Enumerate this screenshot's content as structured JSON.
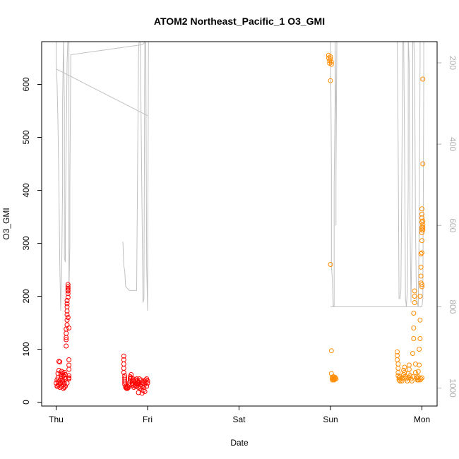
{
  "chart_data": {
    "type": "scatter",
    "title": "ATOM2 Northeast_Pacific_1 O3_GMI",
    "xlabel": "Date",
    "ylabel": "O3_GMI",
    "x_axis": {
      "type": "time",
      "ticks": [
        "Thu",
        "Fri",
        "Sat",
        "Sun",
        "Mon"
      ],
      "range_days": [
        -0.08,
        4.16
      ]
    },
    "ylim": [
      0,
      680
    ],
    "y_ticks": [
      0,
      100,
      200,
      300,
      400,
      500,
      600
    ],
    "secondary_axis": {
      "label": "",
      "reversed": true,
      "ticks": [
        200,
        400,
        600,
        800,
        1000
      ],
      "range": [
        135,
        1035
      ],
      "color": "#b0b0b0"
    },
    "grid": false,
    "series": [
      {
        "color": "#ff0000",
        "marker": "open-circle",
        "points": [
          [
            0.0,
            36
          ],
          [
            0.01,
            42
          ],
          [
            0.01,
            30
          ],
          [
            0.02,
            38
          ],
          [
            0.02,
            46
          ],
          [
            0.02,
            54
          ],
          [
            0.03,
            77
          ],
          [
            0.03,
            33
          ],
          [
            0.03,
            60
          ],
          [
            0.04,
            28
          ],
          [
            0.04,
            40
          ],
          [
            0.05,
            52
          ],
          [
            0.05,
            44
          ],
          [
            0.05,
            36
          ],
          [
            0.06,
            48
          ],
          [
            0.06,
            30
          ],
          [
            0.07,
            55
          ],
          [
            0.07,
            42
          ],
          [
            0.07,
            38
          ],
          [
            0.08,
            26
          ],
          [
            0.08,
            33
          ],
          [
            0.08,
            50
          ],
          [
            0.09,
            46
          ],
          [
            0.09,
            36
          ],
          [
            0.09,
            56
          ],
          [
            0.1,
            30
          ],
          [
            0.1,
            44
          ],
          [
            0.1,
            52
          ],
          [
            0.11,
            106
          ],
          [
            0.11,
            118
          ],
          [
            0.11,
            122
          ],
          [
            0.11,
            130
          ],
          [
            0.11,
            138
          ],
          [
            0.12,
            146
          ],
          [
            0.12,
            155
          ],
          [
            0.12,
            165
          ],
          [
            0.12,
            172
          ],
          [
            0.12,
            180
          ],
          [
            0.12,
            186
          ],
          [
            0.12,
            192
          ],
          [
            0.13,
            198
          ],
          [
            0.13,
            205
          ],
          [
            0.13,
            210
          ],
          [
            0.13,
            215
          ],
          [
            0.13,
            218
          ],
          [
            0.13,
            222
          ],
          [
            0.13,
            212
          ],
          [
            0.13,
            160
          ],
          [
            0.14,
            140
          ],
          [
            0.14,
            80
          ],
          [
            0.14,
            70
          ],
          [
            0.14,
            62
          ],
          [
            0.14,
            50
          ],
          [
            0.14,
            46
          ],
          [
            0.14,
            44
          ],
          [
            0.04,
            76
          ],
          [
            0.06,
            58
          ],
          [
            0.12,
            36
          ],
          [
            0.02,
            30
          ],
          [
            0.09,
            28
          ],
          [
            0.74,
            87
          ],
          [
            0.74,
            80
          ],
          [
            0.74,
            72
          ],
          [
            0.74,
            64
          ],
          [
            0.74,
            56
          ],
          [
            0.75,
            50
          ],
          [
            0.75,
            46
          ],
          [
            0.75,
            42
          ],
          [
            0.75,
            38
          ],
          [
            0.75,
            34
          ],
          [
            0.76,
            30
          ],
          [
            0.76,
            28
          ],
          [
            0.77,
            27
          ],
          [
            0.77,
            26
          ],
          [
            0.78,
            30
          ],
          [
            0.78,
            26
          ],
          [
            0.79,
            28
          ],
          [
            0.8,
            32
          ],
          [
            0.8,
            36
          ],
          [
            0.81,
            40
          ],
          [
            0.81,
            44
          ],
          [
            0.81,
            48
          ],
          [
            0.82,
            52
          ],
          [
            0.82,
            46
          ],
          [
            0.83,
            40
          ],
          [
            0.83,
            36
          ],
          [
            0.84,
            32
          ],
          [
            0.84,
            44
          ],
          [
            0.85,
            40
          ],
          [
            0.85,
            28
          ],
          [
            0.86,
            32
          ],
          [
            0.86,
            38
          ],
          [
            0.87,
            42
          ],
          [
            0.87,
            30
          ],
          [
            0.88,
            36
          ],
          [
            0.88,
            44
          ],
          [
            0.89,
            40
          ],
          [
            0.89,
            34
          ],
          [
            0.9,
            28
          ],
          [
            0.9,
            38
          ],
          [
            0.91,
            44
          ],
          [
            0.91,
            36
          ],
          [
            0.92,
            30
          ],
          [
            0.92,
            26
          ],
          [
            0.93,
            34
          ],
          [
            0.93,
            42
          ],
          [
            0.94,
            38
          ],
          [
            0.94,
            30
          ],
          [
            0.95,
            22
          ],
          [
            0.95,
            36
          ],
          [
            0.96,
            40
          ],
          [
            0.96,
            28
          ],
          [
            0.97,
            20
          ],
          [
            0.97,
            34
          ],
          [
            0.98,
            42
          ],
          [
            0.98,
            38
          ],
          [
            0.99,
            30
          ],
          [
            0.99,
            44
          ],
          [
            1.0,
            36
          ],
          [
            1.0,
            40
          ],
          [
            0.9,
            18
          ],
          [
            0.94,
            17
          ]
        ]
      },
      {
        "color": "#ff8c00",
        "marker": "open-circle",
        "points": [
          [
            2.98,
            655
          ],
          [
            2.98,
            650
          ],
          [
            2.99,
            645
          ],
          [
            2.99,
            640
          ],
          [
            3.0,
            652
          ],
          [
            3.0,
            648
          ],
          [
            3.01,
            642
          ],
          [
            3.01,
            638
          ],
          [
            3.0,
            607
          ],
          [
            3.0,
            260
          ],
          [
            3.01,
            97
          ],
          [
            3.01,
            54
          ],
          [
            3.02,
            47
          ],
          [
            3.02,
            45
          ],
          [
            3.03,
            43
          ],
          [
            3.03,
            46
          ],
          [
            3.04,
            44
          ],
          [
            3.04,
            42
          ],
          [
            3.05,
            45
          ],
          [
            3.05,
            47
          ],
          [
            3.06,
            44
          ],
          [
            3.02,
            42
          ],
          [
            3.03,
            48
          ],
          [
            3.04,
            46
          ],
          [
            3.73,
            95
          ],
          [
            3.73,
            88
          ],
          [
            3.73,
            80
          ],
          [
            3.74,
            72
          ],
          [
            3.74,
            64
          ],
          [
            3.74,
            56
          ],
          [
            3.74,
            50
          ],
          [
            3.75,
            46
          ],
          [
            3.75,
            42
          ],
          [
            3.76,
            48
          ],
          [
            3.77,
            44
          ],
          [
            3.78,
            40
          ],
          [
            3.79,
            46
          ],
          [
            3.8,
            52
          ],
          [
            3.8,
            60
          ],
          [
            3.81,
            66
          ],
          [
            3.81,
            56
          ],
          [
            3.82,
            48
          ],
          [
            3.83,
            44
          ],
          [
            3.84,
            40
          ],
          [
            3.85,
            46
          ],
          [
            3.85,
            54
          ],
          [
            3.86,
            62
          ],
          [
            3.86,
            70
          ],
          [
            3.87,
            50
          ],
          [
            3.88,
            44
          ],
          [
            3.89,
            40
          ],
          [
            3.9,
            48
          ],
          [
            3.9,
            92
          ],
          [
            3.91,
            120
          ],
          [
            3.91,
            140
          ],
          [
            3.91,
            168
          ],
          [
            3.92,
            188
          ],
          [
            3.92,
            200
          ],
          [
            3.92,
            210
          ],
          [
            3.93,
            72
          ],
          [
            3.93,
            56
          ],
          [
            3.94,
            46
          ],
          [
            3.95,
            42
          ],
          [
            3.96,
            48
          ],
          [
            3.96,
            58
          ],
          [
            3.97,
            70
          ],
          [
            3.97,
            100
          ],
          [
            3.98,
            120
          ],
          [
            3.98,
            155
          ],
          [
            3.98,
            200
          ],
          [
            3.99,
            225
          ],
          [
            3.99,
            238
          ],
          [
            3.99,
            255
          ],
          [
            3.99,
            280
          ],
          [
            4.0,
            282
          ],
          [
            4.0,
            305
          ],
          [
            4.0,
            320
          ],
          [
            4.0,
            325
          ],
          [
            4.0,
            330
          ],
          [
            4.0,
            340
          ],
          [
            4.0,
            348
          ],
          [
            4.0,
            355
          ],
          [
            4.0,
            365
          ],
          [
            4.01,
            330
          ],
          [
            4.01,
            325
          ],
          [
            4.01,
            335
          ],
          [
            4.01,
            342
          ],
          [
            4.01,
            450
          ],
          [
            4.01,
            610
          ],
          [
            4.0,
            222
          ],
          [
            4.0,
            218
          ],
          [
            3.96,
            42
          ],
          [
            3.98,
            42
          ],
          [
            3.99,
            44
          ],
          [
            4.0,
            46
          ],
          [
            3.76,
            40
          ],
          [
            3.95,
            46
          ]
        ]
      }
    ],
    "pressure_line": {
      "color": "#c0c0c0",
      "points": [
        [
          0.0,
          135
        ],
        [
          0.0,
          200
        ],
        [
          0.01,
          250
        ],
        [
          0.02,
          350
        ],
        [
          0.03,
          500
        ],
        [
          0.04,
          700
        ],
        [
          0.05,
          810
        ],
        [
          0.06,
          720
        ],
        [
          0.07,
          500
        ],
        [
          0.07,
          300
        ],
        [
          0.08,
          150
        ],
        [
          0.08,
          135
        ],
        [
          0.09,
          300
        ],
        [
          0.09,
          500
        ],
        [
          0.09,
          680
        ],
        [
          0.1,
          690
        ],
        [
          0.1,
          600
        ],
        [
          0.11,
          400
        ],
        [
          0.12,
          200
        ],
        [
          0.13,
          135
        ],
        [
          0.14,
          135
        ],
        [
          0.14,
          600
        ],
        [
          0.14,
          720
        ],
        [
          0.14,
          770
        ],
        [
          0.15,
          650
        ],
        [
          0.15,
          500
        ],
        [
          0.16,
          200
        ],
        [
          0.16,
          180
        ],
        [
          0.95,
          155
        ],
        [
          1.0,
          135
        ],
        [
          1.6,
          135
        ],
        [
          2.4,
          135
        ],
        [
          3.0,
          135
        ]
      ],
      "segments": [
        [
          [
            0.0,
            215
          ],
          [
            1.0,
            330
          ]
        ],
        [
          [
            0.73,
            640
          ],
          [
            0.74,
            700
          ],
          [
            0.75,
            710
          ],
          [
            0.76,
            750
          ],
          [
            0.8,
            760
          ],
          [
            0.88,
            760
          ],
          [
            0.9,
            180
          ],
          [
            0.91,
            135
          ],
          [
            0.92,
            135
          ],
          [
            0.95,
            790
          ],
          [
            0.96,
            780
          ],
          [
            0.97,
            135
          ],
          [
            0.98,
            135
          ],
          [
            0.99,
            700
          ],
          [
            1.0,
            810
          ],
          [
            1.01,
            135
          ]
        ],
        [
          [
            3.0,
            135
          ],
          [
            3.01,
            450
          ],
          [
            3.01,
            700
          ],
          [
            3.02,
            730
          ],
          [
            3.03,
            800
          ],
          [
            3.04,
            800
          ],
          [
            3.04,
            500
          ],
          [
            3.05,
            300
          ],
          [
            3.05,
            140
          ],
          [
            3.05,
            135
          ],
          [
            3.06,
            330
          ],
          [
            3.06,
            600
          ],
          [
            3.06,
            470
          ],
          [
            3.07,
            135
          ],
          [
            3.07,
            135
          ]
        ],
        [
          [
            3.0,
            800
          ],
          [
            4.0,
            800
          ],
          [
            4.01,
            780
          ],
          [
            4.02,
            250
          ],
          [
            4.02,
            135
          ]
        ],
        [
          [
            3.73,
            135
          ],
          [
            3.74,
            400
          ],
          [
            3.75,
            780
          ],
          [
            3.76,
            780
          ],
          [
            3.77,
            760
          ],
          [
            3.78,
            500
          ],
          [
            3.79,
            150
          ],
          [
            3.8,
            135
          ],
          [
            3.81,
            400
          ],
          [
            3.82,
            780
          ],
          [
            3.83,
            800
          ],
          [
            3.84,
            760
          ],
          [
            3.85,
            500
          ],
          [
            3.85,
            135
          ],
          [
            3.86,
            200
          ],
          [
            3.87,
            600
          ],
          [
            3.88,
            790
          ],
          [
            3.89,
            650
          ],
          [
            3.9,
            400
          ],
          [
            3.9,
            135
          ],
          [
            3.91,
            135
          ],
          [
            3.92,
            200
          ],
          [
            3.93,
            600
          ],
          [
            3.94,
            780
          ],
          [
            3.96,
            800
          ],
          [
            3.97,
            600
          ],
          [
            3.98,
            200
          ],
          [
            3.98,
            135
          ]
        ]
      ]
    }
  }
}
